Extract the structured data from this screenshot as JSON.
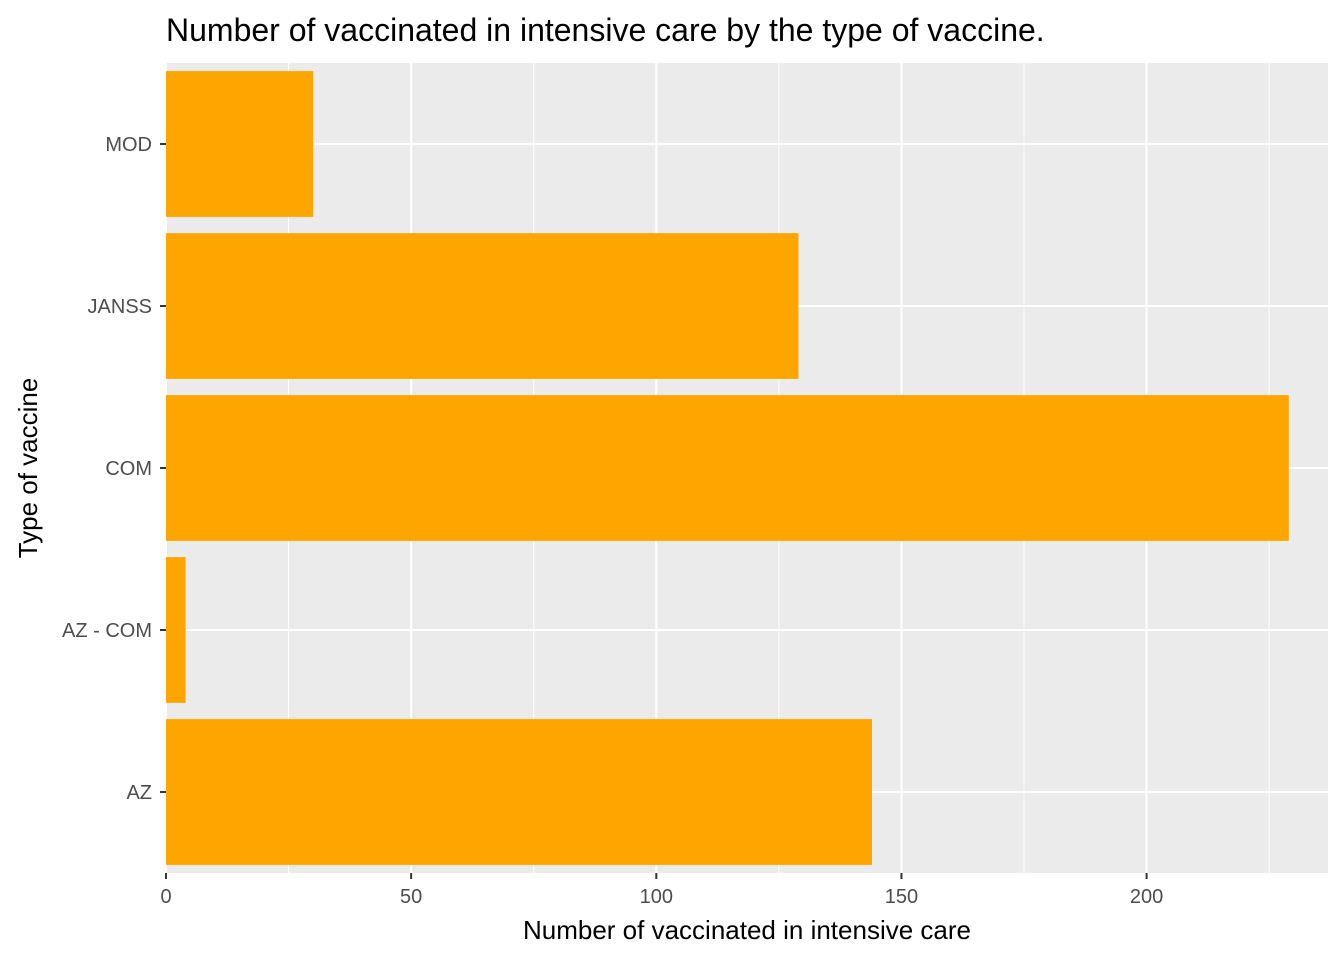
{
  "chart_data": {
    "type": "bar",
    "orientation": "horizontal",
    "title": "Number of vaccinated in intensive care by the type of vaccine.",
    "xlabel": "Number of vaccinated in intensive care",
    "ylabel": "Type of vaccine",
    "categories": [
      "AZ",
      "AZ - COM",
      "COM",
      "JANSS",
      "MOD"
    ],
    "values": [
      144,
      4,
      229,
      129,
      30
    ],
    "xlim": [
      0,
      237
    ],
    "xticks": [
      0,
      50,
      100,
      150,
      200
    ],
    "grid": true,
    "legend": "none",
    "colors": {
      "bar": "#FFA500",
      "panel": "#EBEBEB",
      "grid": "#FFFFFF"
    }
  }
}
